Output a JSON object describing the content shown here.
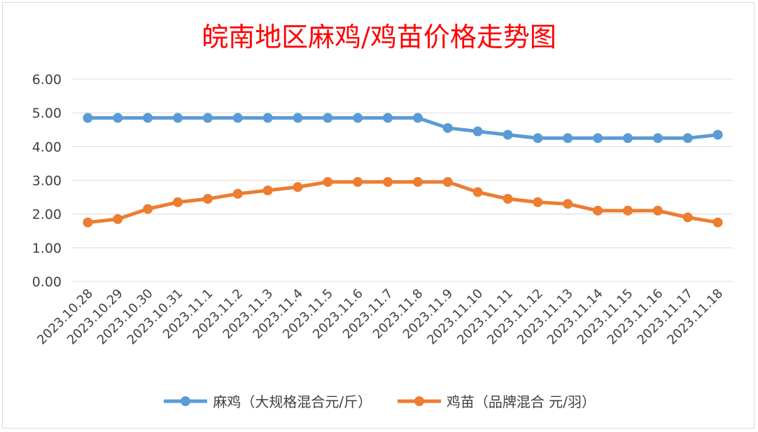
{
  "chart_data": {
    "type": "line",
    "title": "皖南地区麻鸡/鸡苗价格走势图",
    "categories": [
      "2023.10.28",
      "2023.10.29",
      "2023.10.30",
      "2023.10.31",
      "2023.11.1",
      "2023.11.2",
      "2023.11.3",
      "2023.11.4",
      "2023.11.5",
      "2023.11.6",
      "2023.11.7",
      "2023.11.8",
      "2023.11.9",
      "2023.11.10",
      "2023.11.11",
      "2023.11.12",
      "2023.11.13",
      "2023.11.14",
      "2023.11.15",
      "2023.11.16",
      "2023.11.17",
      "2023.11.18"
    ],
    "y_ticks": [
      "0.00",
      "1.00",
      "2.00",
      "3.00",
      "4.00",
      "5.00",
      "6.00"
    ],
    "ylim": [
      0,
      6
    ],
    "grid": true,
    "legend_position": "bottom",
    "series": [
      {
        "name": "麻鸡（大规格混合元/斤）",
        "color": "#5b9bd5",
        "values": [
          4.85,
          4.85,
          4.85,
          4.85,
          4.85,
          4.85,
          4.85,
          4.85,
          4.85,
          4.85,
          4.85,
          4.85,
          4.55,
          4.45,
          4.35,
          4.25,
          4.25,
          4.25,
          4.25,
          4.25,
          4.25,
          4.35
        ]
      },
      {
        "name": "鸡苗（品牌混合 元/羽）",
        "color": "#ed7d31",
        "values": [
          1.75,
          1.85,
          2.15,
          2.35,
          2.45,
          2.6,
          2.7,
          2.8,
          2.95,
          2.95,
          2.95,
          2.95,
          2.95,
          2.65,
          2.45,
          2.35,
          2.3,
          2.1,
          2.1,
          2.1,
          1.9,
          1.75
        ]
      }
    ]
  }
}
